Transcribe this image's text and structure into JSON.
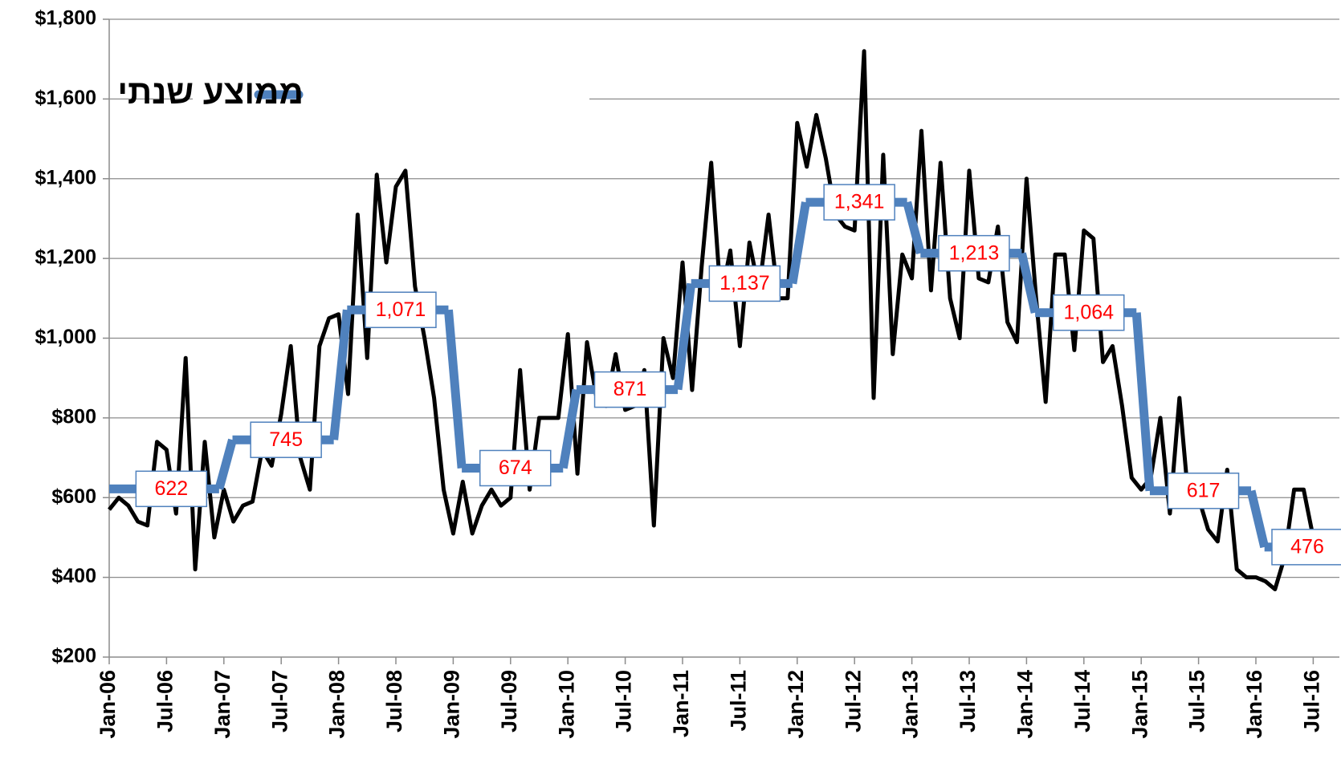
{
  "chart_data": {
    "type": "line",
    "categories": [
      "Jan-06",
      null,
      null,
      null,
      null,
      null,
      "Jul-06",
      null,
      null,
      null,
      null,
      null,
      "Jan-07",
      null,
      null,
      null,
      null,
      null,
      "Jul-07",
      null,
      null,
      null,
      null,
      null,
      "Jan-08",
      null,
      null,
      null,
      null,
      null,
      "Jul-08",
      null,
      null,
      null,
      null,
      null,
      "Jan-09",
      null,
      null,
      null,
      null,
      null,
      "Jul-09",
      null,
      null,
      null,
      null,
      null,
      "Jan-10",
      null,
      null,
      null,
      null,
      null,
      "Jul-10",
      null,
      null,
      null,
      null,
      null,
      "Jan-11",
      null,
      null,
      null,
      null,
      null,
      "Jul-11",
      null,
      null,
      null,
      null,
      null,
      "Jan-12",
      null,
      null,
      null,
      null,
      null,
      "Jul-12",
      null,
      null,
      null,
      null,
      null,
      "Jan-13",
      null,
      null,
      null,
      null,
      null,
      "Jul-13",
      null,
      null,
      null,
      null,
      null,
      "Jan-14",
      null,
      null,
      null,
      null,
      null,
      "Jul-14",
      null,
      null,
      null,
      null,
      null,
      "Jan-15",
      null,
      null,
      null,
      null,
      null,
      "Jul-15",
      null,
      null,
      null,
      null,
      null,
      "Jan-16",
      null,
      null,
      null,
      null,
      null,
      "Jul-16"
    ],
    "series": [
      {
        "color": "#000000",
        "values": [
          570,
          600,
          580,
          540,
          530,
          740,
          720,
          560,
          950,
          420,
          740,
          500,
          620,
          540,
          580,
          590,
          720,
          680,
          810,
          980,
          700,
          620,
          980,
          1050,
          1060,
          860,
          1310,
          950,
          1410,
          1190,
          1380,
          1420,
          1130,
          1000,
          850,
          620,
          510,
          640,
          510,
          580,
          620,
          580,
          600,
          920,
          620,
          800,
          800,
          800,
          1010,
          660,
          990,
          850,
          830,
          960,
          820,
          830,
          920,
          530,
          1000,
          900,
          1190,
          870,
          1180,
          1440,
          1100,
          1220,
          980,
          1240,
          1120,
          1310,
          1100,
          1100,
          1540,
          1430,
          1560,
          1450,
          1310,
          1280,
          1270,
          1720,
          850,
          1460,
          960,
          1210,
          1150,
          1520,
          1120,
          1440,
          1100,
          1000,
          1420,
          1150,
          1140,
          1280,
          1040,
          990,
          1400,
          1100,
          840,
          1210,
          1210,
          970,
          1270,
          1250,
          940,
          980,
          830,
          650,
          620,
          650,
          800,
          560,
          850,
          580,
          600,
          520,
          490,
          670,
          420,
          400,
          400,
          390,
          370,
          450,
          620,
          620,
          500
        ]
      }
    ],
    "annual_average": {
      "name": "ממוצע שנתי",
      "color": "#4f81bd",
      "values": [
        622,
        745,
        1071,
        674,
        871,
        1137,
        1341,
        1213,
        1064,
        617,
        476
      ],
      "value_labels": [
        "622",
        "745",
        "1,071",
        "674",
        "871",
        "1,137",
        "1,341",
        "1,213",
        "1,064",
        "617",
        "476"
      ]
    },
    "ylim": [
      200,
      1800
    ],
    "yticks": [
      {
        "value": 200,
        "label": "$200"
      },
      {
        "value": 400,
        "label": "$400"
      },
      {
        "value": 600,
        "label": "$600"
      },
      {
        "value": 800,
        "label": "$800"
      },
      {
        "value": 1000,
        "label": "$1,000"
      },
      {
        "value": 1200,
        "label": "$1,200"
      },
      {
        "value": 1400,
        "label": "$1,400"
      },
      {
        "value": 1600,
        "label": "$1,600"
      },
      {
        "value": 1800,
        "label": "$1,800"
      }
    ],
    "grid": true
  }
}
